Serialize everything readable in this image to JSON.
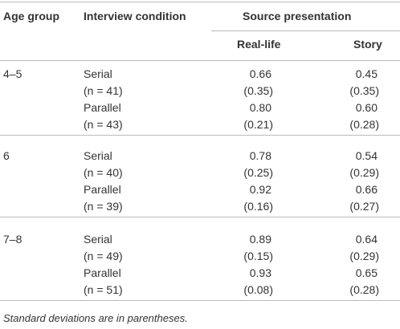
{
  "table": {
    "header": {
      "age": "Age group",
      "condition": "Interview condition",
      "source": "Source presentation",
      "real": "Real-life",
      "story": "Story"
    },
    "groups": [
      {
        "age": "4–5",
        "conditions": [
          {
            "name": "Serial",
            "n": "(n = 41)",
            "real_mean": "0.66",
            "real_sd": "(0.35)",
            "story_mean": "0.45",
            "story_sd": "(0.35)"
          },
          {
            "name": "Parallel",
            "n": "(n = 43)",
            "real_mean": "0.80",
            "real_sd": "(0.21)",
            "story_mean": "0.60",
            "story_sd": "(0.28)"
          }
        ]
      },
      {
        "age": "6",
        "conditions": [
          {
            "name": "Serial",
            "n": "(n = 40)",
            "real_mean": "0.78",
            "real_sd": "(0.25)",
            "story_mean": "0.54",
            "story_sd": "(0.29)"
          },
          {
            "name": "Parallel",
            "n": "(n = 39)",
            "real_mean": "0.92",
            "real_sd": "(0.16)",
            "story_mean": "0.66",
            "story_sd": "(0.27)"
          }
        ]
      },
      {
        "age": "7–8",
        "conditions": [
          {
            "name": "Serial",
            "n": "(n = 49)",
            "real_mean": "0.89",
            "real_sd": "(0.15)",
            "story_mean": "0.64",
            "story_sd": "(0.29)"
          },
          {
            "name": "Parallel",
            "n": "(n = 51)",
            "real_mean": "0.93",
            "real_sd": "(0.08)",
            "story_mean": "0.65",
            "story_sd": "(0.28)"
          }
        ]
      }
    ],
    "footnote": "Standard deviations are in parentheses."
  }
}
